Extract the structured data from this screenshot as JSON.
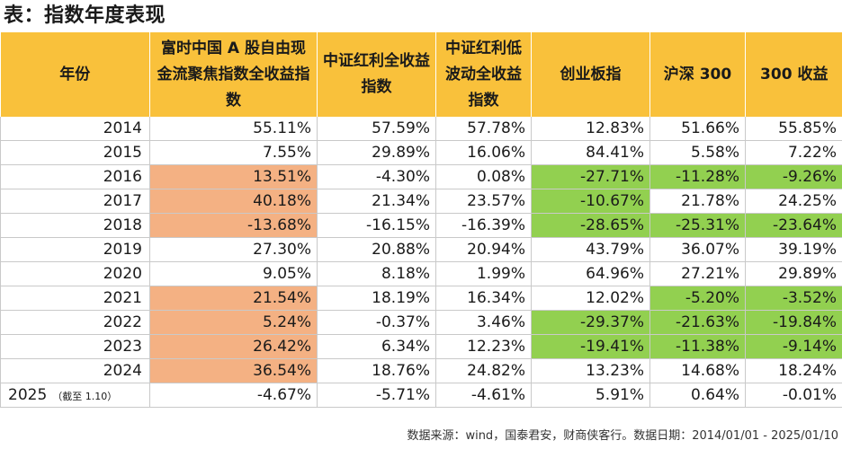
{
  "title": "表：指数年度表现",
  "colors": {
    "header": "#f9c13b",
    "orange": "#f4b183",
    "green": "#92d050"
  },
  "table": {
    "headers": [
      "年份",
      "富时中国 A 股自由现金流聚焦指数全收益指数",
      "中证红利全收益指数",
      "中证红利低波动全收益指数",
      "创业板指",
      "沪深 300",
      "300 收益"
    ],
    "rows": [
      {
        "year": "2014",
        "note": "",
        "cells": [
          "55.11%",
          "57.59%",
          "57.78%",
          "12.83%",
          "51.66%",
          "55.85%"
        ],
        "hl": [
          "",
          "",
          "",
          "",
          "",
          ""
        ]
      },
      {
        "year": "2015",
        "note": "",
        "cells": [
          "7.55%",
          "29.89%",
          "16.06%",
          "84.41%",
          "5.58%",
          "7.22%"
        ],
        "hl": [
          "",
          "",
          "",
          "",
          "",
          ""
        ]
      },
      {
        "year": "2016",
        "note": "",
        "cells": [
          "13.51%",
          "-4.30%",
          "0.08%",
          "-27.71%",
          "-11.28%",
          "-9.26%"
        ],
        "hl": [
          "orange",
          "",
          "",
          "green",
          "green",
          "green"
        ]
      },
      {
        "year": "2017",
        "note": "",
        "cells": [
          "40.18%",
          "21.34%",
          "23.57%",
          "-10.67%",
          "21.78%",
          "24.25%"
        ],
        "hl": [
          "orange",
          "",
          "",
          "green",
          "",
          ""
        ]
      },
      {
        "year": "2018",
        "note": "",
        "cells": [
          "-13.68%",
          "-16.15%",
          "-16.39%",
          "-28.65%",
          "-25.31%",
          "-23.64%"
        ],
        "hl": [
          "orange",
          "",
          "",
          "green",
          "green",
          "green"
        ]
      },
      {
        "year": "2019",
        "note": "",
        "cells": [
          "27.30%",
          "20.88%",
          "20.94%",
          "43.79%",
          "36.07%",
          "39.19%"
        ],
        "hl": [
          "",
          "",
          "",
          "",
          "",
          ""
        ]
      },
      {
        "year": "2020",
        "note": "",
        "cells": [
          "9.05%",
          "8.18%",
          "1.99%",
          "64.96%",
          "27.21%",
          "29.89%"
        ],
        "hl": [
          "",
          "",
          "",
          "",
          "",
          ""
        ]
      },
      {
        "year": "2021",
        "note": "",
        "cells": [
          "21.54%",
          "18.19%",
          "16.34%",
          "12.02%",
          "-5.20%",
          "-3.52%"
        ],
        "hl": [
          "orange",
          "",
          "",
          "",
          "green",
          "green"
        ]
      },
      {
        "year": "2022",
        "note": "",
        "cells": [
          "5.24%",
          "-0.37%",
          "3.46%",
          "-29.37%",
          "-21.63%",
          "-19.84%"
        ],
        "hl": [
          "orange",
          "",
          "",
          "green",
          "green",
          "green"
        ]
      },
      {
        "year": "2023",
        "note": "",
        "cells": [
          "26.42%",
          "6.34%",
          "12.23%",
          "-19.41%",
          "-11.38%",
          "-9.14%"
        ],
        "hl": [
          "orange",
          "",
          "",
          "green",
          "green",
          "green"
        ]
      },
      {
        "year": "2024",
        "note": "",
        "cells": [
          "36.54%",
          "18.76%",
          "24.82%",
          "13.23%",
          "14.68%",
          "18.24%"
        ],
        "hl": [
          "orange",
          "",
          "",
          "",
          "",
          ""
        ]
      },
      {
        "year": "2025",
        "note": "（截至 1.10）",
        "cells": [
          "-4.67%",
          "-5.71%",
          "-4.61%",
          "5.91%",
          "0.64%",
          "-0.01%"
        ],
        "hl": [
          "",
          "",
          "",
          "",
          "",
          ""
        ]
      }
    ]
  },
  "source": "数据来源：wind，国泰君安，财商侠客行。数据日期：2014/01/01 - 2025/01/10"
}
